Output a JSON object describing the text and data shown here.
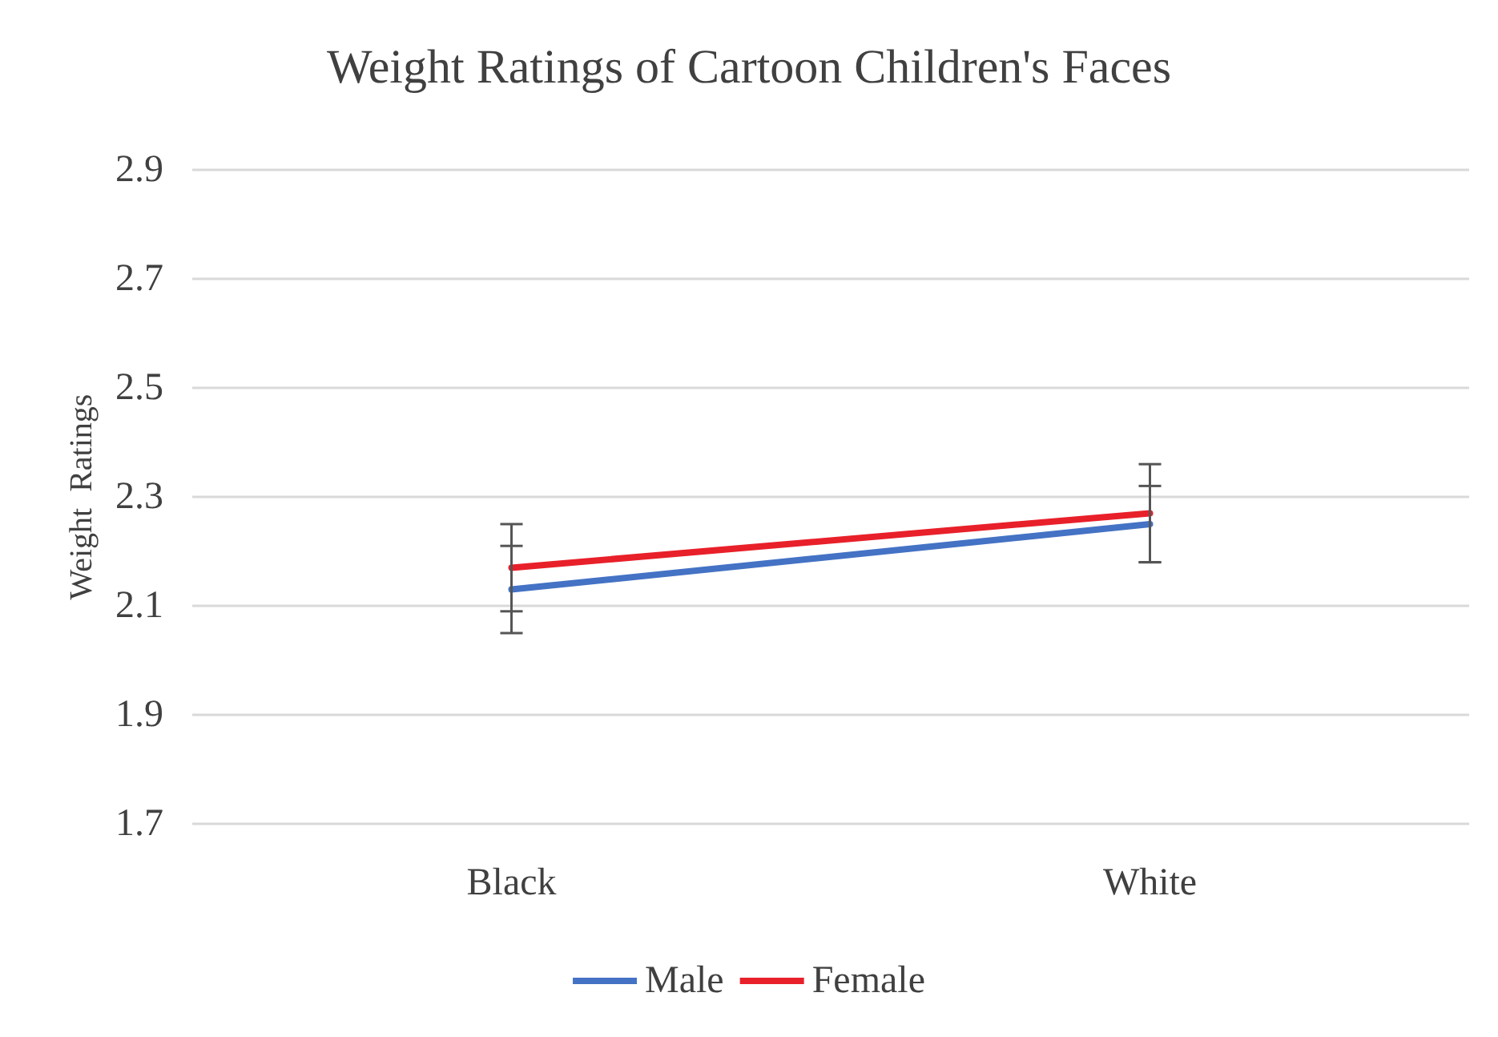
{
  "chart_data": {
    "type": "line",
    "title": "Weight Ratings of Cartoon Children's Faces",
    "ylabel": "Weight  Ratings",
    "categories": [
      "Black",
      "White"
    ],
    "series": [
      {
        "name": "Male",
        "color": "#4472c4",
        "values": [
          2.13,
          2.25
        ],
        "errors": [
          0.08,
          0.07
        ]
      },
      {
        "name": "Female",
        "color": "#e8202a",
        "values": [
          2.17,
          2.27
        ],
        "errors": [
          0.08,
          0.09
        ]
      }
    ],
    "ylim": [
      1.7,
      2.9
    ],
    "yticks": [
      1.7,
      1.9,
      2.1,
      2.3,
      2.5,
      2.7,
      2.9
    ],
    "grid": "y",
    "legend": "bottom",
    "marker": "none",
    "line_style": "solid"
  }
}
